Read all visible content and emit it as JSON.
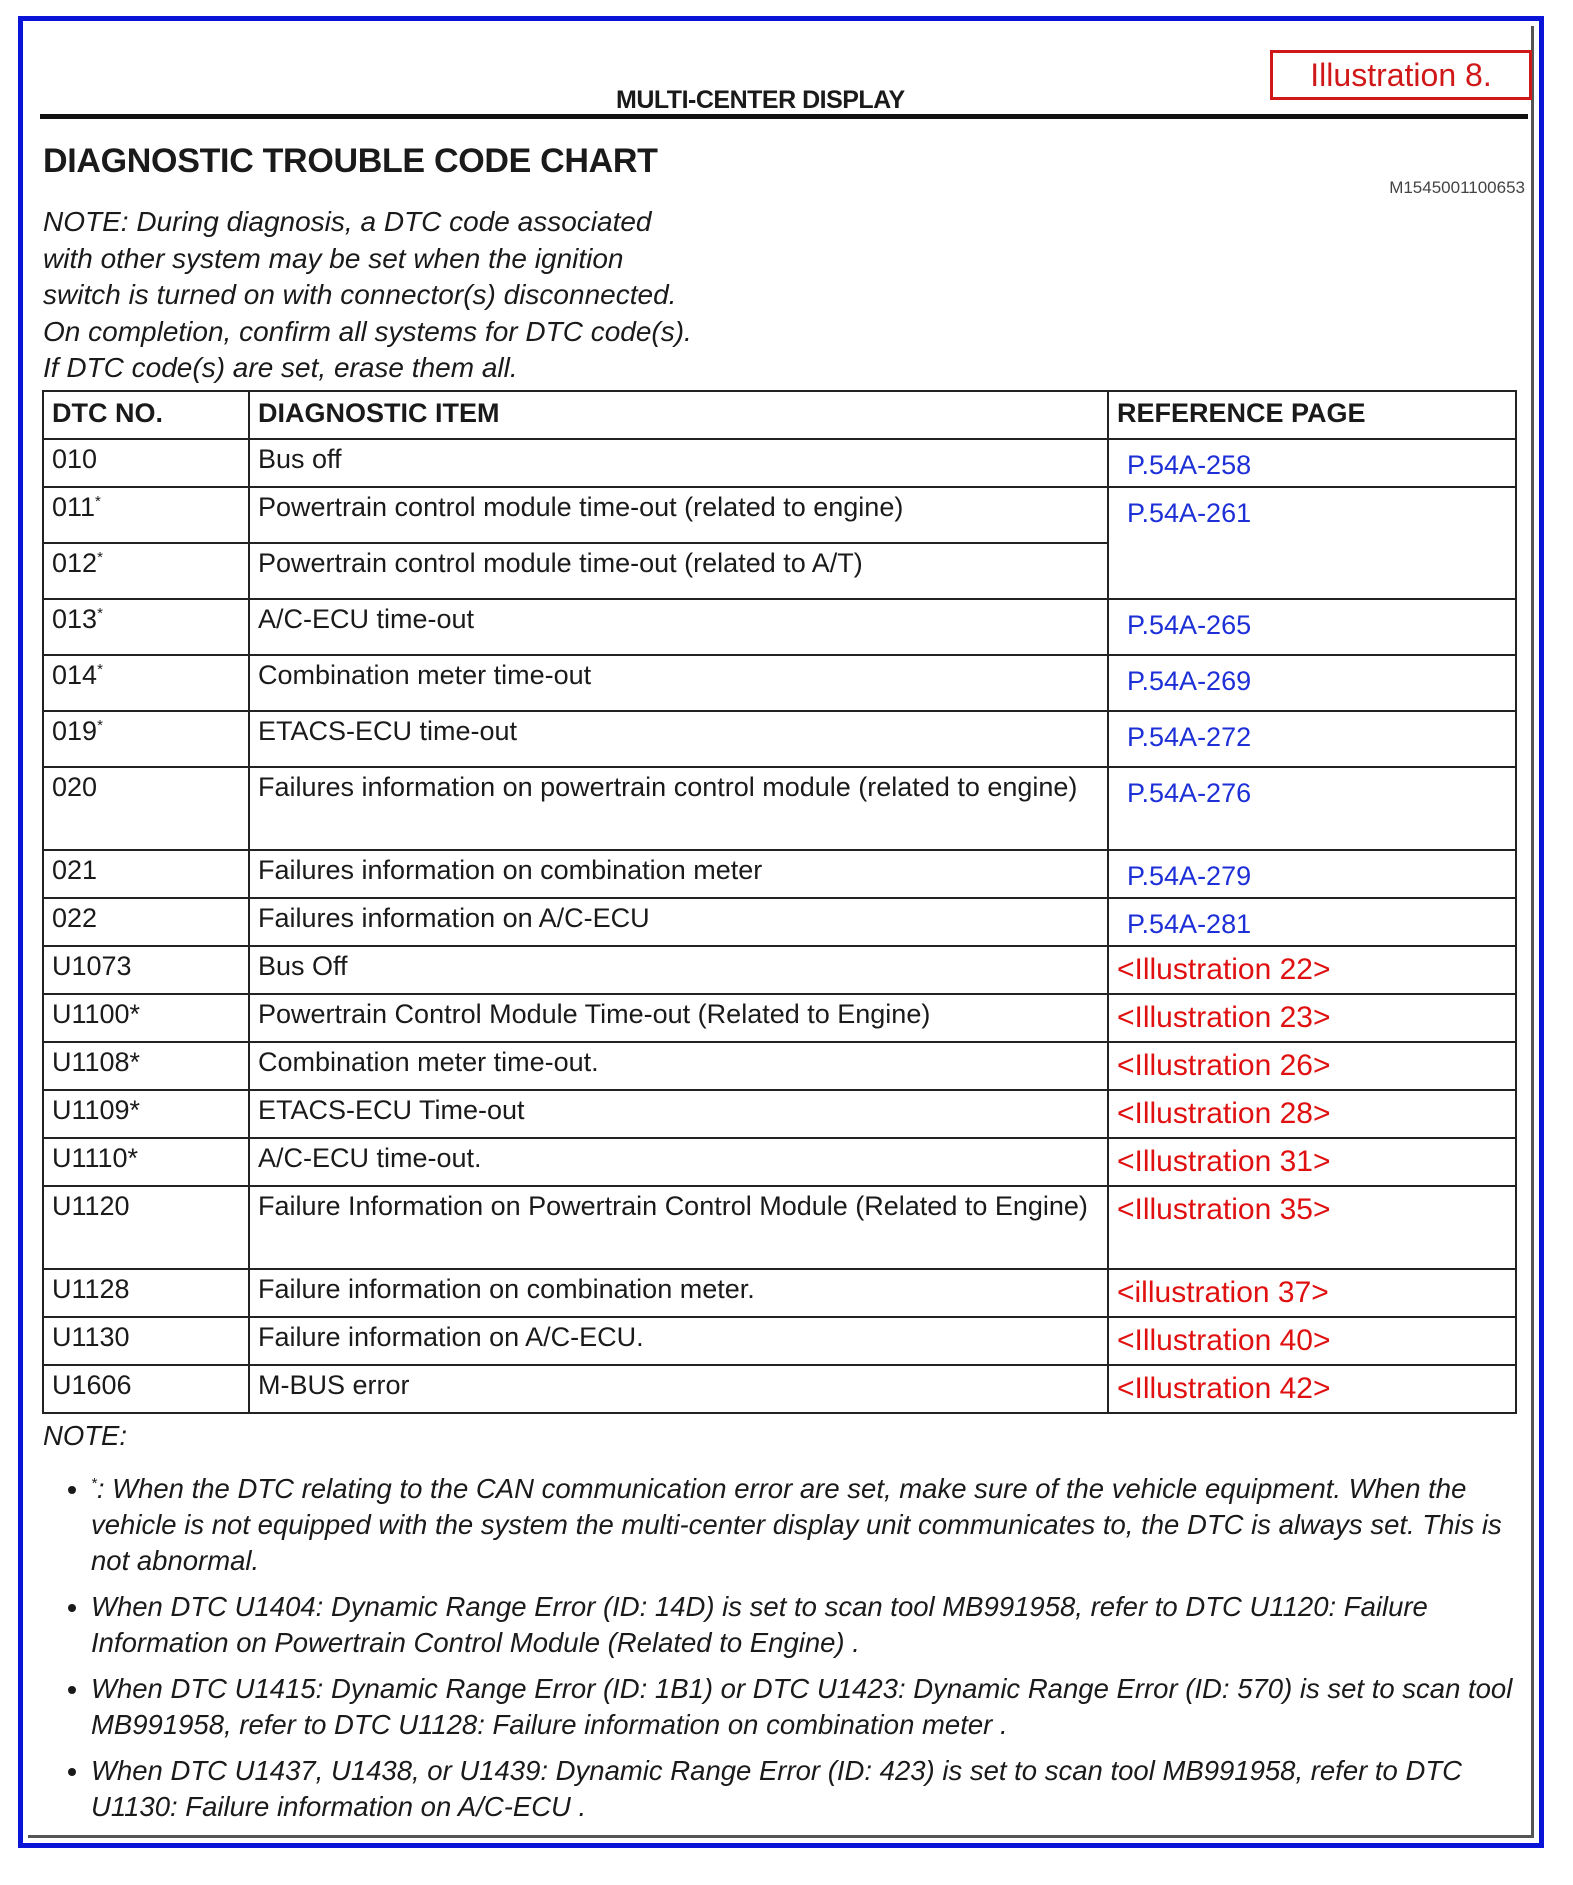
{
  "header": {
    "section": "MULTI-CENTER DISPLAY",
    "illustration_label": "Illustration 8.",
    "title": "DIAGNOSTIC TROUBLE CODE CHART",
    "doc_id": "M1545001100653"
  },
  "intro_note": [
    "NOTE: During diagnosis, a DTC code associated",
    "with other system may be set when the ignition",
    "switch is turned on with connector(s) disconnected.",
    "On completion, confirm all systems for DTC code(s).",
    "If DTC code(s) are set, erase them all."
  ],
  "table": {
    "columns": [
      "DTC NO.",
      "DIAGNOSTIC ITEM",
      "REFERENCE PAGE"
    ],
    "rows": [
      {
        "code": "010",
        "sup": "",
        "item": "Bus off",
        "ref": "P.54A-258",
        "ref_type": "blue",
        "h": 48
      },
      {
        "code": "011",
        "sup": "*",
        "item": "Powertrain control module time-out (related to engine)",
        "ref": "P.54A-261",
        "ref_type": "blue",
        "h": 56,
        "rowspan": 2
      },
      {
        "code": "012",
        "sup": "*",
        "item": "Powertrain control module time-out (related to A/T)",
        "h": 56
      },
      {
        "code": "013",
        "sup": "*",
        "item": "A/C-ECU time-out",
        "ref": "P.54A-265",
        "ref_type": "blue",
        "h": 56
      },
      {
        "code": "014",
        "sup": "*",
        "item": "Combination meter time-out",
        "ref": "P.54A-269",
        "ref_type": "blue",
        "h": 56
      },
      {
        "code": "019",
        "sup": "*",
        "item": "ETACS-ECU time-out",
        "ref": "P.54A-272",
        "ref_type": "blue",
        "h": 56
      },
      {
        "code": "020",
        "sup": "",
        "item": "Failures information on powertrain control module (related to engine)",
        "ref": "P.54A-276",
        "ref_type": "blue",
        "h": 83
      },
      {
        "code": "021",
        "sup": "",
        "item": "Failures information on combination meter",
        "ref": "P.54A-279",
        "ref_type": "blue",
        "h": 48
      },
      {
        "code": "022",
        "sup": "",
        "item": "Failures information on A/C-ECU",
        "ref": "P.54A-281",
        "ref_type": "blue",
        "h": 48
      },
      {
        "code": "U1073",
        "sup": "",
        "item": "Bus Off",
        "ref": "<Illustration 22>",
        "ref_type": "red",
        "h": 48
      },
      {
        "code": "U1100*",
        "sup": "",
        "item": "Powertrain Control Module Time-out (Related to Engine)",
        "ref": "<Illustration 23>",
        "ref_type": "red",
        "h": 48
      },
      {
        "code": "U1108*",
        "sup": "",
        "item": "Combination meter time-out.",
        "ref": "<Illustration 26>",
        "ref_type": "red",
        "h": 48
      },
      {
        "code": "U1109*",
        "sup": "",
        "item": "ETACS-ECU Time-out",
        "ref": "<Illustration 28>",
        "ref_type": "red",
        "h": 48
      },
      {
        "code": "U1110*",
        "sup": "",
        "item": "A/C-ECU time-out.",
        "ref": "<Illustration 31>",
        "ref_type": "red",
        "h": 48
      },
      {
        "code": "U1120",
        "sup": "",
        "item": "Failure Information on Powertrain Control Module (Related to Engine)",
        "ref": "<Illustration 35>",
        "ref_type": "red",
        "h": 83
      },
      {
        "code": "U1128",
        "sup": "",
        "item": "Failure information on combination meter.",
        "ref": "<illustration 37>",
        "ref_type": "red",
        "h": 48
      },
      {
        "code": "U1130",
        "sup": "",
        "item": "Failure information on A/C-ECU.",
        "ref": "<Illustration 40>",
        "ref_type": "red",
        "h": 48
      },
      {
        "code": "U1606",
        "sup": "",
        "item": "M-BUS error",
        "ref": "<Illustration 42>",
        "ref_type": "red",
        "h": 48
      }
    ]
  },
  "footer_note": {
    "label": "NOTE:",
    "items": [
      {
        "sup": "*",
        "text": ": When the DTC relating to the CAN communication error are set, make sure of the vehicle equipment. When the vehicle is not equipped with the system the multi-center display unit communicates to, the DTC is always set. This is not abnormal."
      },
      {
        "sup": "",
        "text": "When DTC U1404: Dynamic Range Error (ID: 14D) is set to scan tool MB991958, refer to DTC U1120: Failure Information on Powertrain Control Module (Related to Engine) ."
      },
      {
        "sup": "",
        "text": "When DTC U1415: Dynamic Range Error (ID: 1B1) or DTC U1423: Dynamic Range Error (ID: 570) is set to scan tool MB991958, refer to DTC U1128: Failure information on combination meter ."
      },
      {
        "sup": "",
        "text": "When DTC U1437, U1438, or U1439: Dynamic Range Error (ID: 423) is set to scan tool MB991958, refer to DTC U1130: Failure information on A/C-ECU ."
      }
    ]
  },
  "colors": {
    "frame": "#0a14d8",
    "page_ref": "#1d2fd6",
    "illustration_ref": "#e01010"
  }
}
